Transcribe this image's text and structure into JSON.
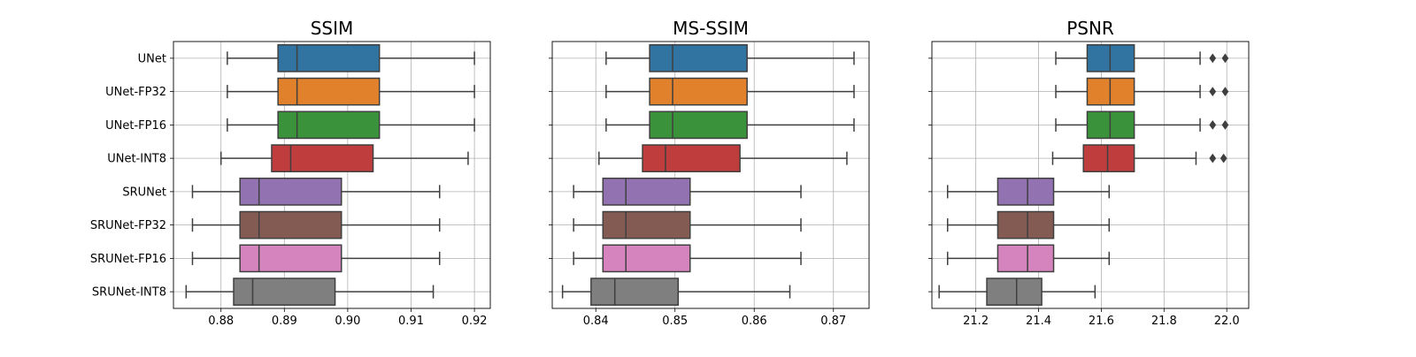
{
  "categories": [
    "UNet",
    "UNet-FP32",
    "UNet-FP16",
    "UNet-INT8",
    "SRUNet",
    "SRUNet-FP32",
    "SRUNet-FP16",
    "SRUNet-INT8"
  ],
  "colors": [
    "#3274a1",
    "#e1812c",
    "#3a923a",
    "#c03d3e",
    "#9372b2",
    "#845b53",
    "#d684bd",
    "#7f7f7f"
  ],
  "chart_data": [
    {
      "type": "box",
      "title": "SSIM",
      "xlim": [
        0.8725,
        0.9225
      ],
      "xticks": [
        0.88,
        0.89,
        0.9,
        0.91,
        0.92
      ],
      "xtick_labels": [
        "0.88",
        "0.89",
        "0.90",
        "0.91",
        "0.92"
      ],
      "grid": true,
      "boxes": [
        {
          "category": "UNet",
          "whisker_low": 0.881,
          "q1": 0.889,
          "median": 0.892,
          "q3": 0.905,
          "whisker_high": 0.92,
          "outliers": []
        },
        {
          "category": "UNet-FP32",
          "whisker_low": 0.881,
          "q1": 0.889,
          "median": 0.892,
          "q3": 0.905,
          "whisker_high": 0.92,
          "outliers": []
        },
        {
          "category": "UNet-FP16",
          "whisker_low": 0.881,
          "q1": 0.889,
          "median": 0.892,
          "q3": 0.905,
          "whisker_high": 0.92,
          "outliers": []
        },
        {
          "category": "UNet-INT8",
          "whisker_low": 0.88,
          "q1": 0.888,
          "median": 0.891,
          "q3": 0.904,
          "whisker_high": 0.919,
          "outliers": []
        },
        {
          "category": "SRUNet",
          "whisker_low": 0.8755,
          "q1": 0.883,
          "median": 0.886,
          "q3": 0.899,
          "whisker_high": 0.9145,
          "outliers": []
        },
        {
          "category": "SRUNet-FP32",
          "whisker_low": 0.8755,
          "q1": 0.883,
          "median": 0.886,
          "q3": 0.899,
          "whisker_high": 0.9145,
          "outliers": []
        },
        {
          "category": "SRUNet-FP16",
          "whisker_low": 0.8755,
          "q1": 0.883,
          "median": 0.886,
          "q3": 0.899,
          "whisker_high": 0.9145,
          "outliers": []
        },
        {
          "category": "SRUNet-INT8",
          "whisker_low": 0.8745,
          "q1": 0.882,
          "median": 0.885,
          "q3": 0.898,
          "whisker_high": 0.9135,
          "outliers": []
        }
      ]
    },
    {
      "type": "box",
      "title": "MS-SSIM",
      "xlim": [
        0.8345,
        0.8745
      ],
      "xticks": [
        0.84,
        0.85,
        0.86,
        0.87
      ],
      "xtick_labels": [
        "0.84",
        "0.85",
        "0.86",
        "0.87"
      ],
      "grid": true,
      "boxes": [
        {
          "category": "UNet",
          "whisker_low": 0.8413,
          "q1": 0.8468,
          "median": 0.8497,
          "q3": 0.8591,
          "whisker_high": 0.8726,
          "outliers": []
        },
        {
          "category": "UNet-FP32",
          "whisker_low": 0.8413,
          "q1": 0.8468,
          "median": 0.8497,
          "q3": 0.8591,
          "whisker_high": 0.8726,
          "outliers": []
        },
        {
          "category": "UNet-FP16",
          "whisker_low": 0.8413,
          "q1": 0.8468,
          "median": 0.8497,
          "q3": 0.8591,
          "whisker_high": 0.8726,
          "outliers": []
        },
        {
          "category": "UNet-INT8",
          "whisker_low": 0.8404,
          "q1": 0.8459,
          "median": 0.8488,
          "q3": 0.8582,
          "whisker_high": 0.8717,
          "outliers": []
        },
        {
          "category": "SRUNet",
          "whisker_low": 0.8372,
          "q1": 0.8409,
          "median": 0.8438,
          "q3": 0.8519,
          "whisker_high": 0.8659,
          "outliers": []
        },
        {
          "category": "SRUNet-FP32",
          "whisker_low": 0.8372,
          "q1": 0.8409,
          "median": 0.8438,
          "q3": 0.8519,
          "whisker_high": 0.8659,
          "outliers": []
        },
        {
          "category": "SRUNet-FP16",
          "whisker_low": 0.8372,
          "q1": 0.8409,
          "median": 0.8438,
          "q3": 0.8519,
          "whisker_high": 0.8659,
          "outliers": []
        },
        {
          "category": "SRUNet-INT8",
          "whisker_low": 0.8358,
          "q1": 0.8394,
          "median": 0.8424,
          "q3": 0.8504,
          "whisker_high": 0.8645,
          "outliers": []
        }
      ]
    },
    {
      "type": "box",
      "title": "PSNR",
      "xlim": [
        21.06,
        22.07
      ],
      "xticks": [
        21.2,
        21.4,
        21.6,
        21.8,
        22.0
      ],
      "xtick_labels": [
        "21.2",
        "21.4",
        "21.6",
        "21.8",
        "22.0"
      ],
      "grid": true,
      "boxes": [
        {
          "category": "UNet",
          "whisker_low": 21.455,
          "q1": 21.555,
          "median": 21.628,
          "q3": 21.705,
          "whisker_high": 21.915,
          "outliers": [
            21.955,
            21.995
          ]
        },
        {
          "category": "UNet-FP32",
          "whisker_low": 21.455,
          "q1": 21.555,
          "median": 21.628,
          "q3": 21.705,
          "whisker_high": 21.915,
          "outliers": [
            21.955,
            21.995
          ]
        },
        {
          "category": "UNet-FP16",
          "whisker_low": 21.455,
          "q1": 21.555,
          "median": 21.628,
          "q3": 21.705,
          "whisker_high": 21.915,
          "outliers": [
            21.955,
            21.995
          ]
        },
        {
          "category": "UNet-INT8",
          "whisker_low": 21.445,
          "q1": 21.543,
          "median": 21.62,
          "q3": 21.705,
          "whisker_high": 21.902,
          "outliers": [
            21.955,
            21.99
          ]
        },
        {
          "category": "SRUNet",
          "whisker_low": 21.11,
          "q1": 21.27,
          "median": 21.365,
          "q3": 21.448,
          "whisker_high": 21.625,
          "outliers": []
        },
        {
          "category": "SRUNet-FP32",
          "whisker_low": 21.11,
          "q1": 21.27,
          "median": 21.365,
          "q3": 21.448,
          "whisker_high": 21.625,
          "outliers": []
        },
        {
          "category": "SRUNet-FP16",
          "whisker_low": 21.11,
          "q1": 21.27,
          "median": 21.365,
          "q3": 21.448,
          "whisker_high": 21.625,
          "outliers": []
        },
        {
          "category": "SRUNet-INT8",
          "whisker_low": 21.083,
          "q1": 21.235,
          "median": 21.33,
          "q3": 21.41,
          "whisker_high": 21.58,
          "outliers": []
        }
      ]
    }
  ]
}
